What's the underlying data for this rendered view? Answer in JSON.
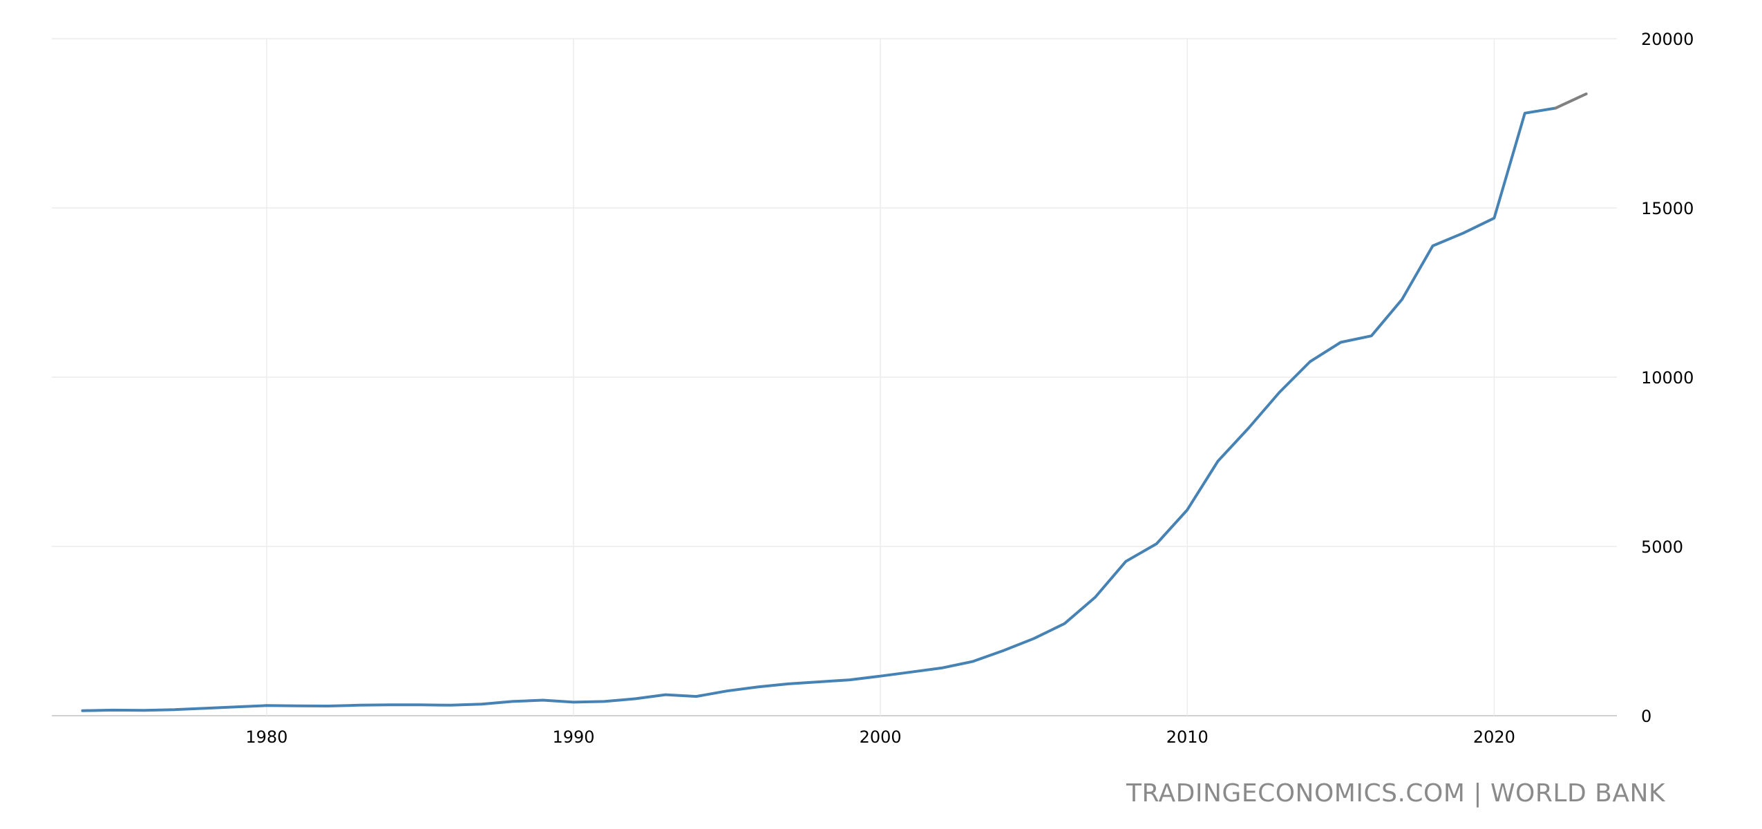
{
  "chart_data": {
    "type": "line",
    "title": "",
    "xlabel": "",
    "ylabel": "",
    "xlim": [
      1973,
      2024
    ],
    "ylim": [
      0,
      20000
    ],
    "x_ticks": [
      1980,
      1990,
      2000,
      2010,
      2020
    ],
    "y_ticks": [
      0,
      5000,
      10000,
      15000,
      20000
    ],
    "grid": true,
    "y_axis_position": "right",
    "series": [
      {
        "color": "#4682b4",
        "x": [
          1974,
          1975,
          1976,
          1977,
          1978,
          1979,
          1980,
          1981,
          1982,
          1983,
          1984,
          1985,
          1986,
          1987,
          1988,
          1989,
          1990,
          1991,
          1992,
          1993,
          1994,
          1995,
          1996,
          1997,
          1998,
          1999,
          2000,
          2001,
          2002,
          2003,
          2004,
          2005,
          2006,
          2007,
          2008,
          2009,
          2010,
          2011,
          2012,
          2013,
          2014,
          2015,
          2016,
          2017,
          2018,
          2019,
          2020,
          2021,
          2022
        ],
        "values": [
          150,
          165,
          160,
          180,
          220,
          260,
          300,
          290,
          285,
          310,
          320,
          320,
          310,
          340,
          420,
          460,
          400,
          420,
          500,
          620,
          570,
          730,
          850,
          940,
          1000,
          1060,
          1170,
          1290,
          1410,
          1600,
          1920,
          2280,
          2720,
          3500,
          4560,
          5080,
          6080,
          7520,
          8500,
          9550,
          10460,
          11030,
          11220,
          12300,
          13880,
          14260,
          14700,
          17800,
          17950
        ]
      },
      {
        "color": "#808080",
        "x": [
          2022,
          2023
        ],
        "values": [
          17950,
          18370
        ]
      }
    ]
  },
  "source_text": "TRADINGECONOMICS.COM | WORLD BANK"
}
